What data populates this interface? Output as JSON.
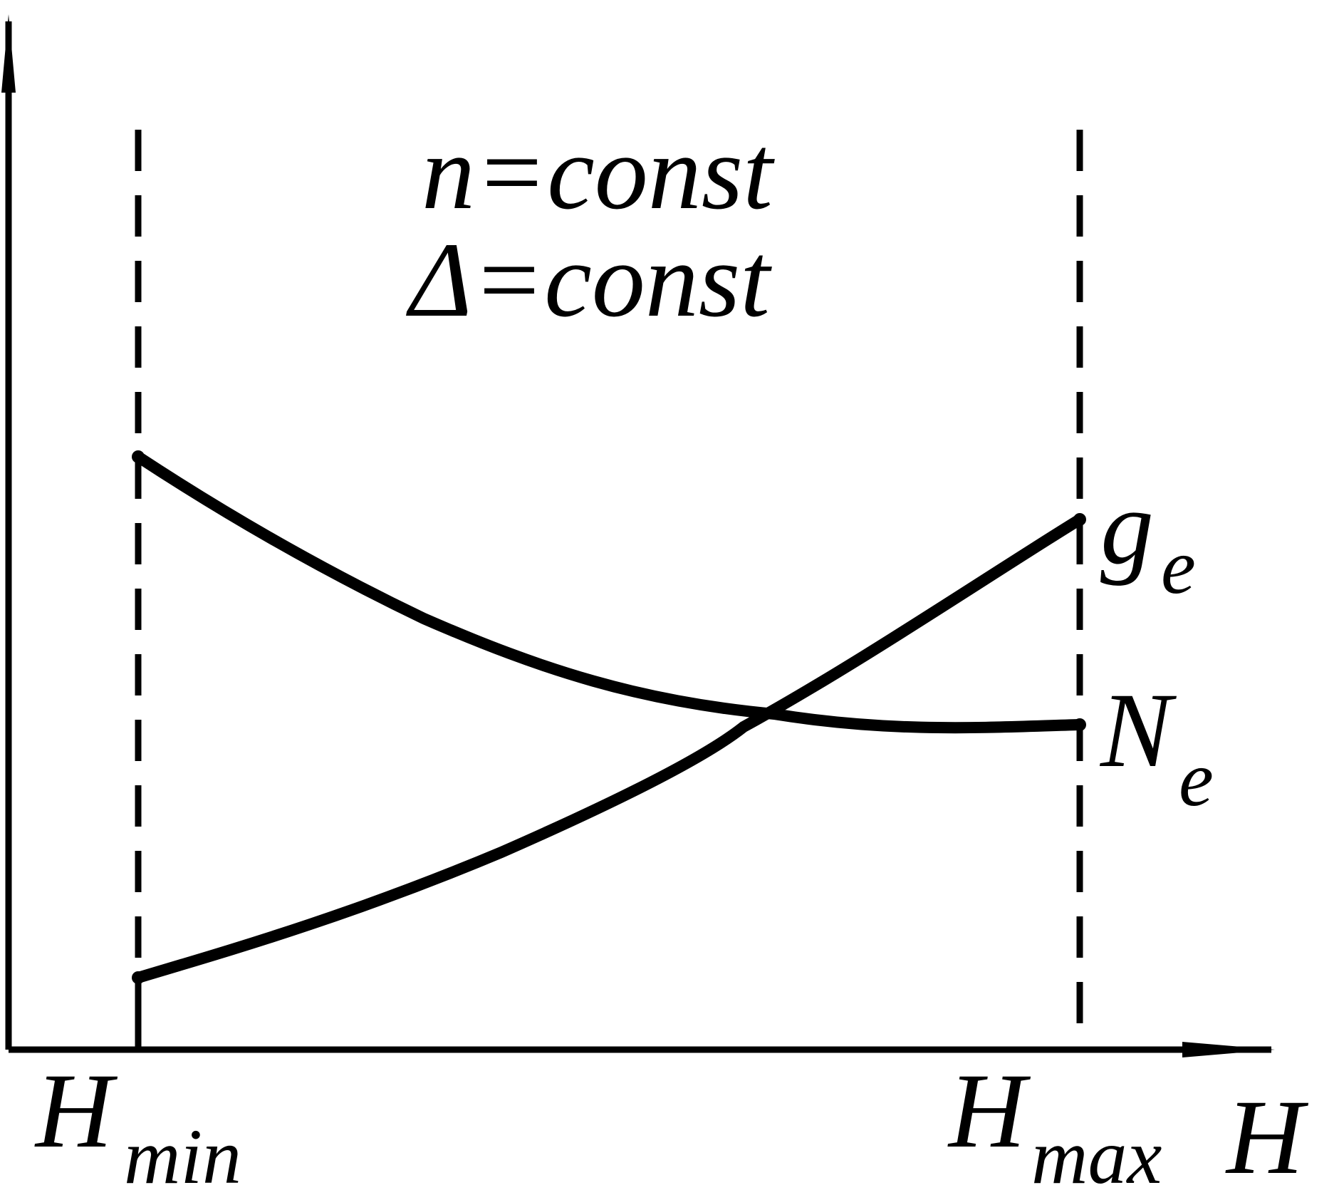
{
  "annotations": {
    "line1": "n=const",
    "line2": "Δ=const"
  },
  "curves": [
    {
      "label": "g",
      "subscript": "e"
    },
    {
      "label": "N",
      "subscript": "e"
    }
  ],
  "x_axis": {
    "label": "H",
    "ticks": [
      {
        "label": "H",
        "subscript": "min"
      },
      {
        "label": "H",
        "subscript": "max"
      }
    ]
  }
}
